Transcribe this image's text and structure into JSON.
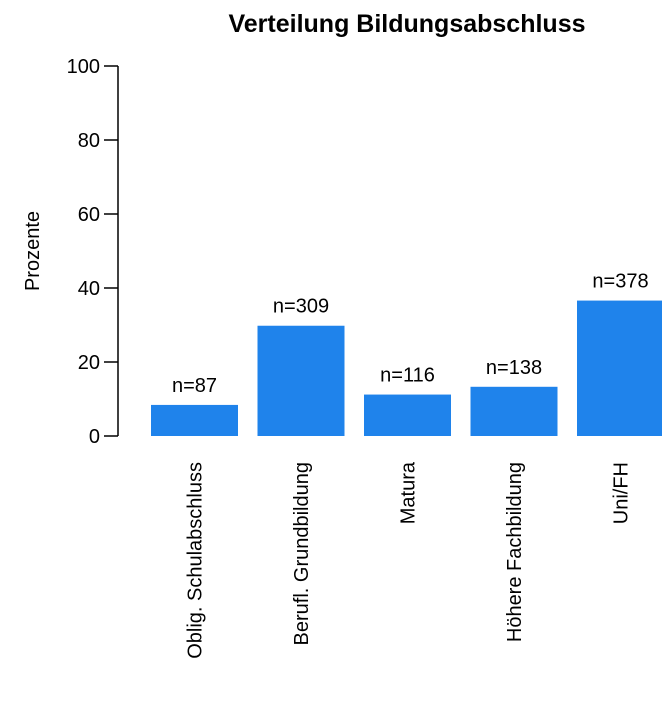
{
  "chart_data": {
    "type": "bar",
    "title": "Verteilung Bildungsabschluss",
    "xlabel": "",
    "ylabel": "Prozente",
    "ylim": [
      0,
      100
    ],
    "yticks": [
      0,
      20,
      40,
      60,
      80,
      100
    ],
    "grid": false,
    "legend": "none",
    "bar_color": "#1f83eb",
    "categories": [
      "Oblig. Schulabschluss",
      "Berufl. Grundbildung",
      "Matura",
      "Höhere Fachbildung",
      "Uni/FH"
    ],
    "values": [
      8.4,
      29.8,
      11.2,
      13.3,
      36.6
    ],
    "data_labels": [
      "n=87",
      "n=309",
      "n=116",
      "n=138",
      "n=378"
    ]
  }
}
